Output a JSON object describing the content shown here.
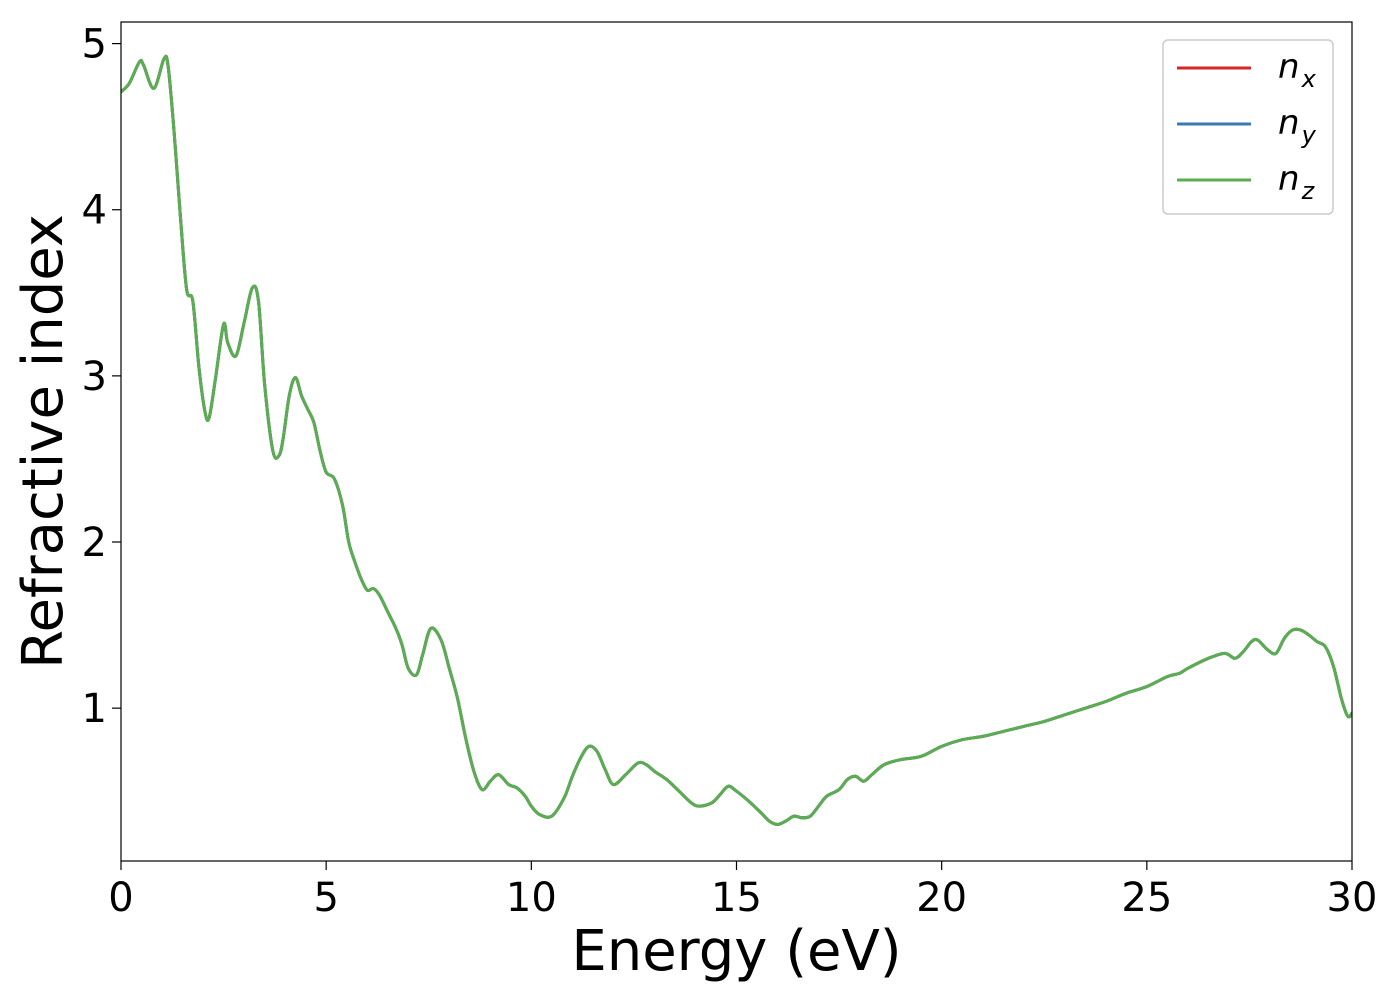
{
  "chart_data": {
    "type": "line",
    "xlabel": "Energy (eV)",
    "ylabel": "Refractive index",
    "xlim": [
      0,
      30
    ],
    "ylim": [
      0.08,
      5.13
    ],
    "xticks": [
      0,
      5,
      10,
      15,
      20,
      25,
      30
    ],
    "yticks": [
      1,
      2,
      3,
      4,
      5
    ],
    "grid": false,
    "legend_position": "top-right",
    "x": [
      0,
      0.2,
      0.45,
      0.55,
      0.8,
      1.05,
      1.15,
      1.3,
      1.45,
      1.6,
      1.75,
      1.9,
      2.05,
      2.15,
      2.3,
      2.5,
      2.6,
      2.8,
      3.0,
      3.2,
      3.35,
      3.5,
      3.7,
      3.85,
      3.95,
      4.1,
      4.25,
      4.4,
      4.55,
      4.7,
      4.85,
      5.0,
      5.2,
      5.4,
      5.55,
      5.7,
      5.85,
      6.0,
      6.15,
      6.3,
      6.5,
      6.7,
      6.85,
      7.0,
      7.2,
      7.35,
      7.55,
      7.8,
      8.0,
      8.2,
      8.4,
      8.6,
      8.8,
      9.0,
      9.2,
      9.45,
      9.65,
      9.85,
      10.0,
      10.2,
      10.5,
      10.8,
      11.0,
      11.2,
      11.4,
      11.6,
      11.8,
      12.0,
      12.3,
      12.6,
      12.8,
      13.0,
      13.3,
      13.6,
      13.9,
      14.1,
      14.4,
      14.6,
      14.8,
      15.0,
      15.3,
      15.6,
      15.8,
      16.0,
      16.2,
      16.4,
      16.6,
      16.8,
      17.0,
      17.2,
      17.5,
      17.7,
      17.9,
      18.1,
      18.3,
      18.6,
      19.0,
      19.5,
      20.0,
      20.5,
      21.0,
      21.5,
      22.0,
      22.5,
      23.0,
      23.5,
      24.0,
      24.5,
      25.0,
      25.5,
      25.8,
      26.0,
      26.5,
      26.9,
      27.15,
      27.35,
      27.55,
      27.7,
      27.95,
      28.15,
      28.35,
      28.55,
      28.75,
      28.95,
      29.15,
      29.35,
      29.55,
      29.75,
      29.9,
      30.0
    ],
    "series": [
      {
        "name": "n_x",
        "color": "#d62728",
        "values": [
          4.71,
          4.76,
          4.89,
          4.87,
          4.73,
          4.91,
          4.86,
          4.45,
          3.95,
          3.52,
          3.45,
          3.05,
          2.78,
          2.75,
          2.98,
          3.31,
          3.2,
          3.12,
          3.32,
          3.53,
          3.45,
          2.95,
          2.55,
          2.52,
          2.62,
          2.88,
          2.99,
          2.88,
          2.8,
          2.72,
          2.55,
          2.42,
          2.38,
          2.22,
          2.0,
          1.88,
          1.78,
          1.71,
          1.72,
          1.68,
          1.58,
          1.48,
          1.38,
          1.24,
          1.2,
          1.32,
          1.48,
          1.41,
          1.24,
          1.06,
          0.82,
          0.62,
          0.51,
          0.56,
          0.6,
          0.54,
          0.52,
          0.47,
          0.41,
          0.36,
          0.35,
          0.46,
          0.59,
          0.7,
          0.77,
          0.74,
          0.63,
          0.54,
          0.6,
          0.67,
          0.66,
          0.62,
          0.57,
          0.5,
          0.43,
          0.41,
          0.43,
          0.48,
          0.53,
          0.5,
          0.44,
          0.37,
          0.32,
          0.3,
          0.32,
          0.35,
          0.34,
          0.35,
          0.41,
          0.47,
          0.51,
          0.57,
          0.59,
          0.56,
          0.6,
          0.66,
          0.69,
          0.71,
          0.77,
          0.81,
          0.83,
          0.86,
          0.89,
          0.92,
          0.96,
          1.0,
          1.04,
          1.09,
          1.13,
          1.19,
          1.21,
          1.24,
          1.3,
          1.33,
          1.3,
          1.34,
          1.4,
          1.41,
          1.35,
          1.33,
          1.42,
          1.47,
          1.47,
          1.44,
          1.4,
          1.37,
          1.25,
          1.05,
          0.95,
          0.97
        ]
      },
      {
        "name": "n_y",
        "color": "#3a7bb5",
        "values": [
          4.71,
          4.76,
          4.89,
          4.87,
          4.73,
          4.91,
          4.86,
          4.45,
          3.95,
          3.52,
          3.45,
          3.05,
          2.78,
          2.75,
          2.98,
          3.31,
          3.2,
          3.12,
          3.32,
          3.53,
          3.45,
          2.95,
          2.55,
          2.52,
          2.62,
          2.88,
          2.99,
          2.88,
          2.8,
          2.72,
          2.55,
          2.42,
          2.38,
          2.22,
          2.0,
          1.88,
          1.78,
          1.71,
          1.72,
          1.68,
          1.58,
          1.48,
          1.38,
          1.24,
          1.2,
          1.32,
          1.48,
          1.41,
          1.24,
          1.06,
          0.82,
          0.62,
          0.51,
          0.56,
          0.6,
          0.54,
          0.52,
          0.47,
          0.41,
          0.36,
          0.35,
          0.46,
          0.59,
          0.7,
          0.77,
          0.74,
          0.63,
          0.54,
          0.6,
          0.67,
          0.66,
          0.62,
          0.57,
          0.5,
          0.43,
          0.41,
          0.43,
          0.48,
          0.53,
          0.5,
          0.44,
          0.37,
          0.32,
          0.3,
          0.32,
          0.35,
          0.34,
          0.35,
          0.41,
          0.47,
          0.51,
          0.57,
          0.59,
          0.56,
          0.6,
          0.66,
          0.69,
          0.71,
          0.77,
          0.81,
          0.83,
          0.86,
          0.89,
          0.92,
          0.96,
          1.0,
          1.04,
          1.09,
          1.13,
          1.19,
          1.21,
          1.24,
          1.3,
          1.33,
          1.3,
          1.34,
          1.4,
          1.41,
          1.35,
          1.33,
          1.42,
          1.47,
          1.47,
          1.44,
          1.4,
          1.37,
          1.25,
          1.05,
          0.95,
          0.97
        ]
      },
      {
        "name": "n_z",
        "color": "#5aad50",
        "values": [
          4.71,
          4.76,
          4.89,
          4.87,
          4.73,
          4.91,
          4.86,
          4.45,
          3.95,
          3.52,
          3.45,
          3.05,
          2.78,
          2.75,
          2.98,
          3.31,
          3.2,
          3.12,
          3.32,
          3.53,
          3.45,
          2.95,
          2.55,
          2.52,
          2.62,
          2.88,
          2.99,
          2.88,
          2.8,
          2.72,
          2.55,
          2.42,
          2.38,
          2.22,
          2.0,
          1.88,
          1.78,
          1.71,
          1.72,
          1.68,
          1.58,
          1.48,
          1.38,
          1.24,
          1.2,
          1.32,
          1.48,
          1.41,
          1.24,
          1.06,
          0.82,
          0.62,
          0.51,
          0.56,
          0.6,
          0.54,
          0.52,
          0.47,
          0.41,
          0.36,
          0.35,
          0.46,
          0.59,
          0.7,
          0.77,
          0.74,
          0.63,
          0.54,
          0.6,
          0.67,
          0.66,
          0.62,
          0.57,
          0.5,
          0.43,
          0.41,
          0.43,
          0.48,
          0.53,
          0.5,
          0.44,
          0.37,
          0.32,
          0.3,
          0.32,
          0.35,
          0.34,
          0.35,
          0.41,
          0.47,
          0.51,
          0.57,
          0.59,
          0.56,
          0.6,
          0.66,
          0.69,
          0.71,
          0.77,
          0.81,
          0.83,
          0.86,
          0.89,
          0.92,
          0.96,
          1.0,
          1.04,
          1.09,
          1.13,
          1.19,
          1.21,
          1.24,
          1.3,
          1.33,
          1.3,
          1.34,
          1.4,
          1.41,
          1.35,
          1.33,
          1.42,
          1.47,
          1.47,
          1.44,
          1.4,
          1.37,
          1.25,
          1.05,
          0.95,
          0.97
        ]
      }
    ],
    "legend": [
      {
        "base": "n",
        "sub": "x",
        "color": "#d62728"
      },
      {
        "base": "n",
        "sub": "y",
        "color": "#3a7bb5"
      },
      {
        "base": "n",
        "sub": "z",
        "color": "#5aad50"
      }
    ]
  }
}
